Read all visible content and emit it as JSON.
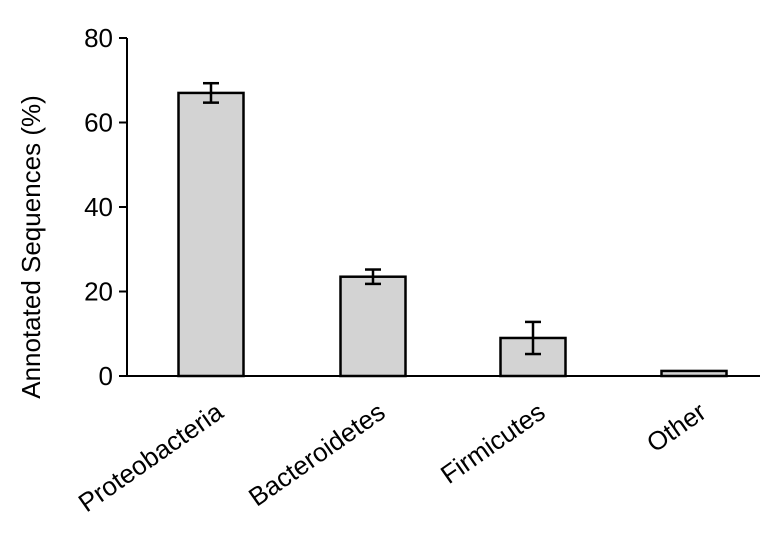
{
  "chart_data": {
    "type": "bar",
    "categories": [
      "Proteobacteria",
      "Bacteroidetes",
      "Firmicutes",
      "Other"
    ],
    "values": [
      67,
      23.5,
      9,
      1.2
    ],
    "error": [
      2.3,
      1.7,
      3.8,
      0.3
    ],
    "title": "",
    "xlabel": "",
    "ylabel": "Annotated Sequences (%)",
    "ylim": [
      0,
      80
    ],
    "yticks": [
      0,
      20,
      40,
      60,
      80
    ],
    "grid": false,
    "bar_fill": "#d3d3d3",
    "bar_stroke": "#000000"
  }
}
